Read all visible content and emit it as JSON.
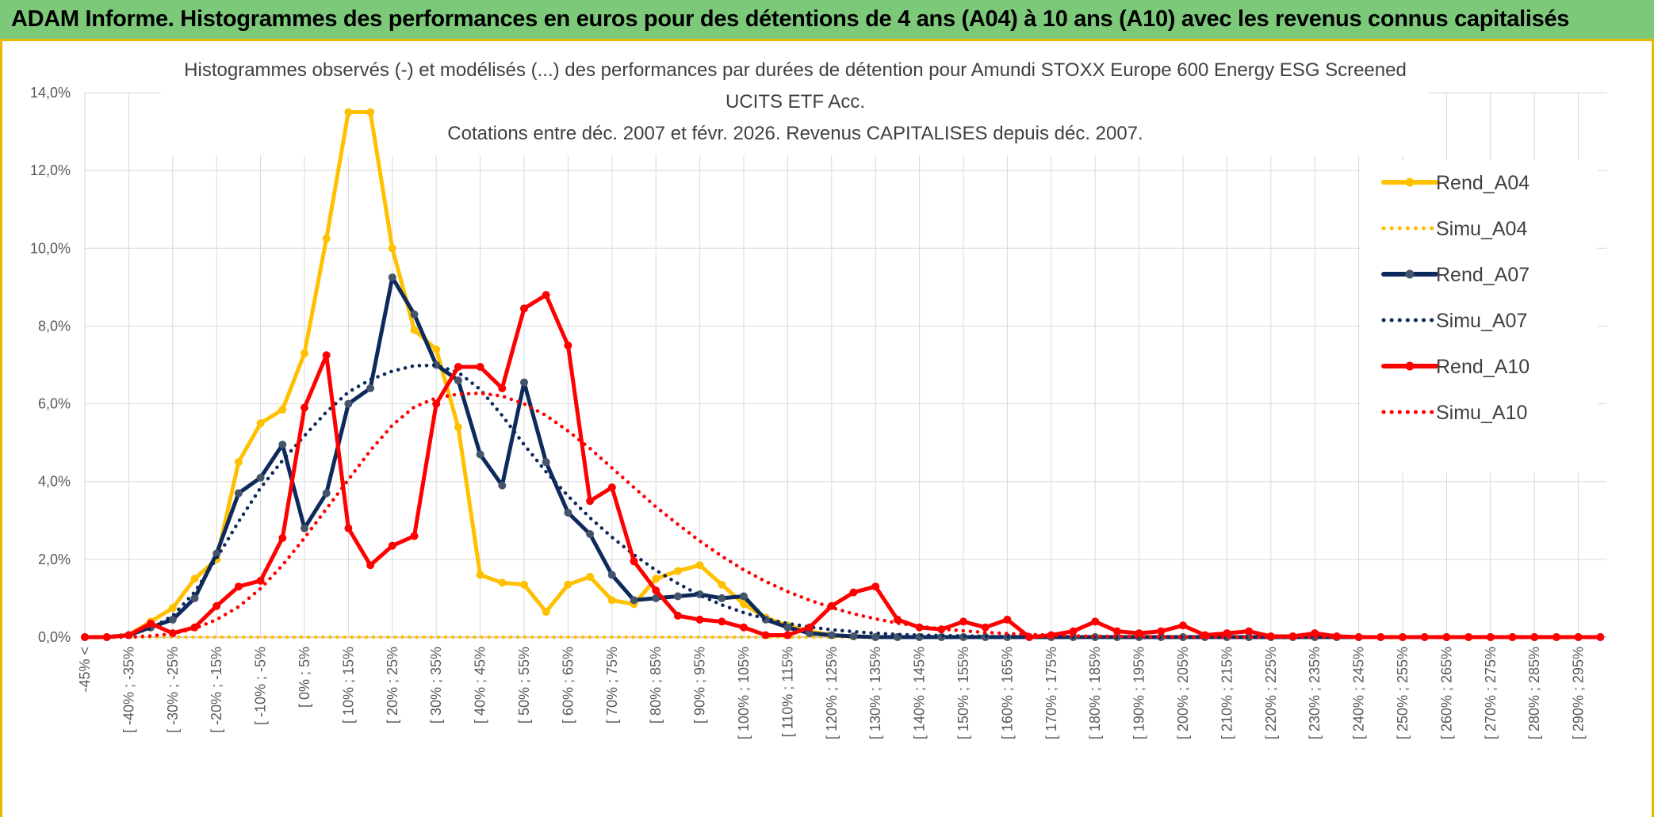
{
  "header": {
    "title": "ADAM Informe. Histogrammes des performances en euros pour des détentions de 4 ans (A04) à 10 ans (A10) avec les revenus connus capitalisés"
  },
  "chart_data": {
    "type": "line",
    "title_lines": [
      "Histogrammes observés (-) et modélisés (...) des performances par durées de détention pour Amundi STOXX Europe 600 Energy ESG Screened",
      "UCITS ETF Acc.",
      "Cotations entre déc. 2007 et févr. 2026. Revenus CAPITALISES depuis déc. 2007."
    ],
    "xlabel": "",
    "ylabel": "",
    "ylim": [
      0,
      14
    ],
    "y_ticks": [
      "0,0%",
      "2,0%",
      "4,0%",
      "6,0%",
      "8,0%",
      "10,0%",
      "12,0%",
      "14,0%"
    ],
    "grid": true,
    "legend_position": "right",
    "categories": [
      "-45% <",
      "",
      "[ -40% ; -35%",
      "",
      "[ -30% ; -25%",
      "",
      "[ -20% ; -15%",
      "",
      "[ -10% ; -5%",
      "",
      "[ 0% ; 5%",
      "",
      "[ 10% ; 15%",
      "",
      "[ 20% ; 25%",
      "",
      "[ 30% ; 35%",
      "",
      "[ 40% ; 45%",
      "",
      "[ 50% ; 55%",
      "",
      "[ 60% ; 65%",
      "",
      "[ 70% ; 75%",
      "",
      "[ 80% ; 85%",
      "",
      "[ 90% ; 95%",
      "",
      "[ 100% ; 105%",
      "",
      "[ 110% ; 115%",
      "",
      "[ 120% ; 125%",
      "",
      "[ 130% ; 135%",
      "",
      "[ 140% ; 145%",
      "",
      "[ 150% ; 155%",
      "",
      "[ 160% ; 165%",
      "",
      "[ 170% ; 175%",
      "",
      "[ 180% ; 185%",
      "",
      "[ 190% ; 195%",
      "",
      "[ 200% ; 205%",
      "",
      "[ 210% ; 215%",
      "",
      "[ 220% ; 225%",
      "",
      "[ 230% ; 235%",
      "",
      "[ 240% ; 245%",
      "",
      "[ 250% ; 255%",
      "",
      "[ 260% ; 265%",
      "",
      "[ 270% ; 275%",
      "",
      "[ 280% ; 285%",
      "",
      "[ 290% ; 295%",
      ""
    ],
    "series": [
      {
        "name": "Rend_A04",
        "style": "solid",
        "color": "#ffc000",
        "markers": true,
        "values": [
          0,
          0,
          0.05,
          0.4,
          0.75,
          1.5,
          2.0,
          4.5,
          5.5,
          5.85,
          7.3,
          10.25,
          13.5,
          13.5,
          10.0,
          7.9,
          7.4,
          5.4,
          1.6,
          1.4,
          1.35,
          0.65,
          1.35,
          1.55,
          0.95,
          0.85,
          1.5,
          1.7,
          1.85,
          1.35,
          0.85,
          0.5,
          0.3,
          0.15,
          0.05,
          0.02,
          0,
          0,
          0,
          0,
          0,
          0,
          0,
          0,
          0,
          0,
          0,
          0,
          0,
          0,
          0,
          0,
          0,
          0,
          0,
          0,
          0,
          0,
          0,
          0,
          0,
          0,
          0,
          0,
          0,
          0,
          0,
          0,
          0,
          0
        ]
      },
      {
        "name": "Simu_A04",
        "style": "dotted",
        "color": "#ffc000",
        "markers": false,
        "values": [
          0,
          0,
          0,
          0,
          0,
          0,
          0,
          0,
          0,
          0,
          0,
          0,
          0,
          0,
          0,
          0,
          0,
          0,
          0,
          0,
          0,
          0,
          0,
          0,
          0,
          0,
          0,
          0,
          0,
          0,
          0,
          0,
          0,
          0,
          0,
          0,
          0,
          0,
          0,
          0,
          0,
          0,
          0,
          0,
          0,
          0,
          0,
          0,
          0,
          0,
          0,
          0,
          0,
          0,
          0,
          0,
          0,
          0,
          0,
          0,
          0,
          0,
          0,
          0,
          0,
          0,
          0,
          0,
          0,
          0
        ]
      },
      {
        "name": "Rend_A07",
        "style": "solid",
        "color": "#0e2a5c",
        "markers": true,
        "values": [
          0,
          0,
          0.05,
          0.25,
          0.45,
          1.0,
          2.15,
          3.7,
          4.1,
          4.95,
          2.8,
          3.7,
          6.0,
          6.4,
          9.25,
          8.3,
          7.0,
          6.6,
          4.7,
          3.9,
          6.55,
          4.5,
          3.2,
          2.65,
          1.6,
          0.95,
          1.0,
          1.05,
          1.1,
          1.0,
          1.05,
          0.45,
          0.25,
          0.1,
          0.05,
          0.02,
          0,
          0,
          0,
          0,
          0,
          0,
          0,
          0,
          0,
          0,
          0,
          0,
          0,
          0,
          0,
          0,
          0,
          0,
          0,
          0,
          0,
          0,
          0,
          0,
          0,
          0,
          0,
          0,
          0,
          0,
          0,
          0,
          0,
          0
        ]
      },
      {
        "name": "Simu_A07",
        "style": "dotted",
        "color": "#0e2a5c",
        "markers": false,
        "values": [
          0.0,
          0.01,
          0.07,
          0.22,
          0.55,
          1.16,
          2.03,
          2.97,
          3.84,
          4.54,
          5.18,
          5.79,
          6.3,
          6.62,
          6.84,
          6.98,
          6.99,
          6.81,
          6.37,
          5.7,
          4.95,
          4.25,
          3.63,
          3.07,
          2.57,
          2.12,
          1.72,
          1.38,
          1.08,
          0.83,
          0.63,
          0.47,
          0.35,
          0.26,
          0.19,
          0.14,
          0.1,
          0.07,
          0.05,
          0.04,
          0.03,
          0.02,
          0.01,
          0.01,
          0.0,
          0.0,
          0.0,
          0.0,
          0.0,
          0.0,
          0.0,
          0.0,
          0.0,
          0.0,
          0.0,
          0.0,
          0.0,
          0.0,
          0.0,
          0.0,
          0.0,
          0.0,
          0.0,
          0.0,
          0.0,
          0.0,
          0.0,
          0.0,
          0.0,
          0.0
        ]
      },
      {
        "name": "Rend_A10",
        "style": "solid",
        "color": "#ff0000",
        "markers": true,
        "values": [
          0,
          0,
          0.05,
          0.35,
          0.1,
          0.25,
          0.8,
          1.3,
          1.45,
          2.55,
          5.9,
          7.25,
          2.8,
          1.85,
          2.35,
          2.6,
          6.0,
          6.95,
          6.95,
          6.4,
          8.45,
          8.8,
          7.5,
          3.5,
          3.85,
          1.95,
          1.2,
          0.55,
          0.45,
          0.4,
          0.25,
          0.05,
          0.05,
          0.25,
          0.8,
          1.15,
          1.3,
          0.45,
          0.25,
          0.2,
          0.4,
          0.25,
          0.45,
          0.0,
          0.05,
          0.15,
          0.4,
          0.15,
          0.1,
          0.15,
          0.3,
          0.05,
          0.1,
          0.15,
          0.02,
          0.02,
          0.1,
          0.02,
          0,
          0,
          0,
          0,
          0,
          0,
          0,
          0,
          0,
          0,
          0,
          0
        ]
      },
      {
        "name": "Simu_A10",
        "style": "dotted",
        "color": "#ff0000",
        "markers": false,
        "values": [
          0.0,
          0.0,
          0.0,
          0.03,
          0.09,
          0.22,
          0.45,
          0.78,
          1.25,
          1.85,
          2.55,
          3.3,
          4.05,
          4.8,
          5.45,
          5.92,
          6.15,
          6.25,
          6.27,
          6.2,
          6.0,
          5.7,
          5.3,
          4.85,
          4.35,
          3.85,
          3.35,
          2.9,
          2.47,
          2.08,
          1.73,
          1.43,
          1.17,
          0.95,
          0.76,
          0.6,
          0.47,
          0.36,
          0.28,
          0.21,
          0.16,
          0.12,
          0.09,
          0.07,
          0.05,
          0.03,
          0.02,
          0.02,
          0.01,
          0.01,
          0.0,
          0.0,
          0.0,
          0.0,
          0.0,
          0.0,
          0.0,
          0.0,
          0.0,
          0.0,
          0.0,
          0.0,
          0.0,
          0.0,
          0.0,
          0.0,
          0.0,
          0.0,
          0.0,
          0.0
        ]
      }
    ]
  }
}
